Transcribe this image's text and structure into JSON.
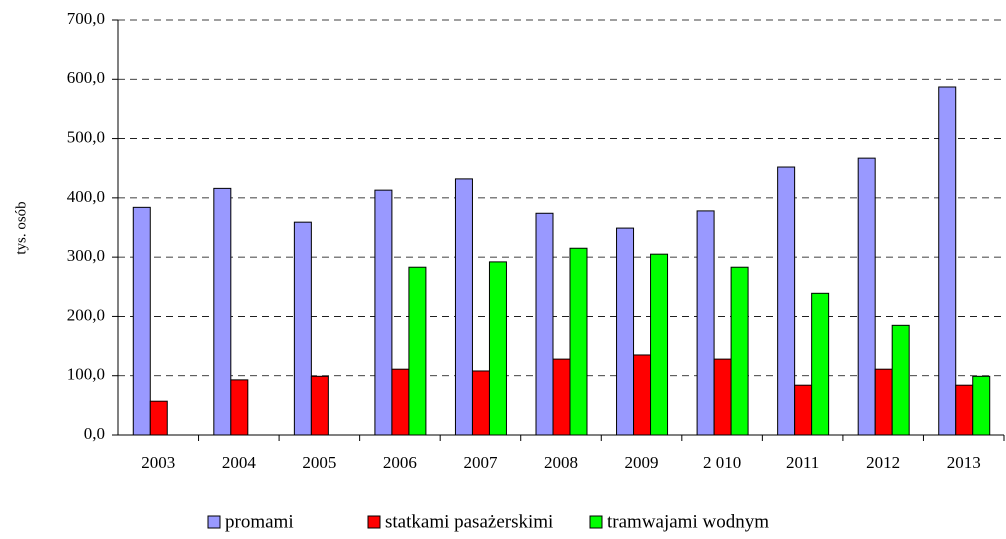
{
  "chart_data": {
    "type": "bar",
    "y_label": "tys. osób",
    "categories": [
      "2003",
      "2004",
      "2005",
      "2006",
      "2007",
      "2008",
      "2009",
      "2 010",
      "2011",
      "2012",
      "2013"
    ],
    "series": [
      {
        "name": "promami",
        "color": "#9999ff",
        "values": [
          384,
          416,
          359,
          413,
          432,
          374,
          349,
          378,
          452,
          467,
          587
        ]
      },
      {
        "name": "statkami pasażerskimi",
        "color": "#ff0000",
        "values": [
          57,
          93,
          99,
          111,
          108,
          128,
          135,
          128,
          84,
          111,
          84
        ]
      },
      {
        "name": "tramwajami wodnym",
        "color": "#00ff00",
        "values": [
          null,
          null,
          null,
          283,
          292,
          315,
          305,
          283,
          239,
          185,
          99
        ]
      }
    ],
    "ylim": [
      0,
      700
    ],
    "yticks": [
      {
        "value": 0,
        "label": "0,0"
      },
      {
        "value": 100,
        "label": "100,0"
      },
      {
        "value": 200,
        "label": "200,0"
      },
      {
        "value": 300,
        "label": "300,0"
      },
      {
        "value": 400,
        "label": "400,0"
      },
      {
        "value": 500,
        "label": "500,0"
      },
      {
        "value": 600,
        "label": "600,0"
      },
      {
        "value": 700,
        "label": "700,0"
      }
    ],
    "grid": true,
    "legend": "bottom"
  }
}
